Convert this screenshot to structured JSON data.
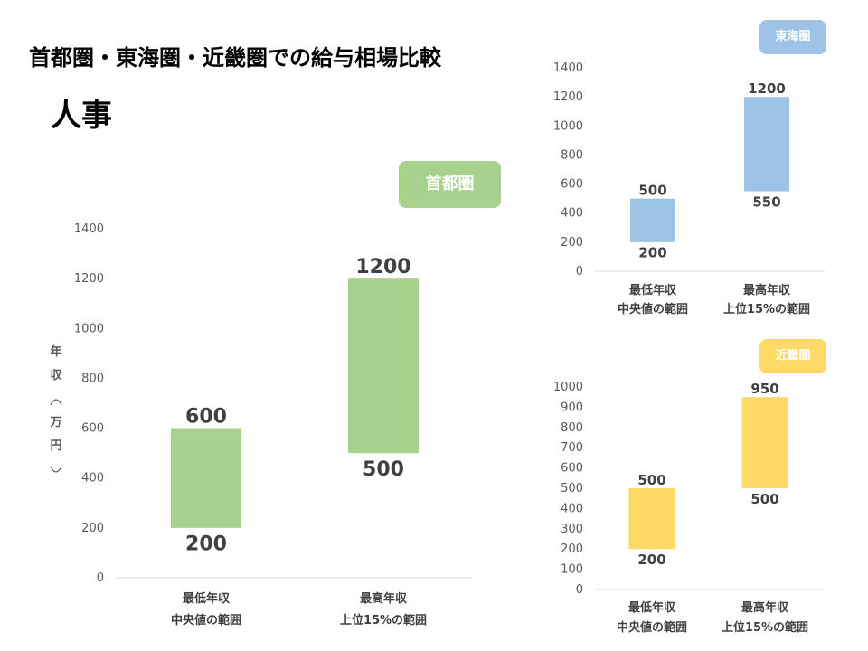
{
  "page": {
    "title": "首都圏・東海圏・近畿圏での給与相場比較",
    "subtitle": "人事"
  },
  "colors": {
    "shutoken": "#A9D18E",
    "tokai": "#9DC3E6",
    "kinki": "#FFD966"
  },
  "chart_data": [
    {
      "type": "bar",
      "region": "首都圏",
      "categories": [
        [
          "最低年収",
          "中央値の範囲"
        ],
        [
          "最高年収",
          "上位15%の範囲"
        ]
      ],
      "ranges": [
        [
          200,
          600
        ],
        [
          500,
          1200
        ]
      ],
      "ylabel": "年収（万円）",
      "ylim": [
        0,
        1400
      ],
      "yticks": [
        0,
        200,
        400,
        600,
        800,
        1000,
        1200,
        1400
      ],
      "grid": false
    },
    {
      "type": "bar",
      "region": "東海圏",
      "categories": [
        [
          "最低年収",
          "中央値の範囲"
        ],
        [
          "最高年収",
          "上位15%の範囲"
        ]
      ],
      "ranges": [
        [
          200,
          500
        ],
        [
          550,
          1200
        ]
      ],
      "ylim": [
        0,
        1400
      ],
      "yticks": [
        0,
        200,
        400,
        600,
        800,
        1000,
        1200,
        1400
      ],
      "grid": false
    },
    {
      "type": "bar",
      "region": "近畿圏",
      "categories": [
        [
          "最低年収",
          "中央値の範囲"
        ],
        [
          "最高年収",
          "上位15%の範囲"
        ]
      ],
      "ranges": [
        [
          200,
          500
        ],
        [
          500,
          950
        ]
      ],
      "ylim": [
        0,
        1000
      ],
      "yticks": [
        0,
        100,
        200,
        300,
        400,
        500,
        600,
        700,
        800,
        900,
        1000
      ],
      "grid": false
    }
  ]
}
